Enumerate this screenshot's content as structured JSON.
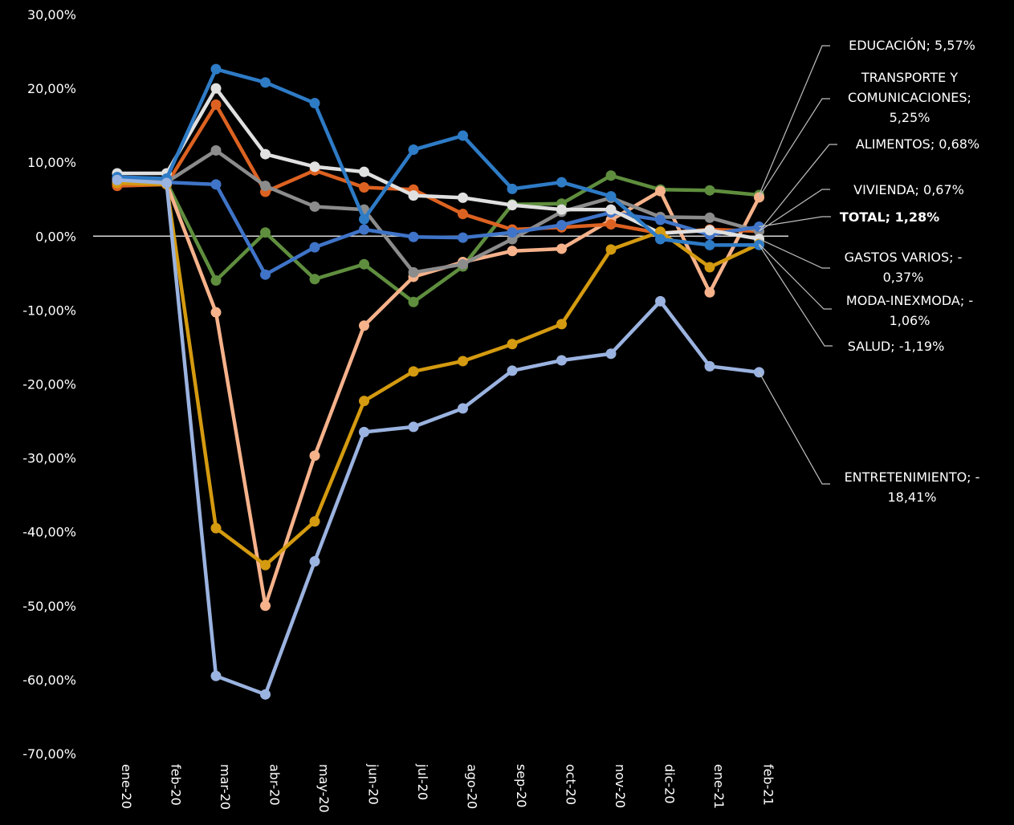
{
  "chart_data": {
    "type": "line",
    "title": "",
    "xlabel": "",
    "ylabel": "",
    "ylim": [
      -70,
      30
    ],
    "yticks": [
      "30,00%",
      "20,00%",
      "10,00%",
      "0,00%",
      "-10,00%",
      "-20,00%",
      "-30,00%",
      "-40,00%",
      "-50,00%",
      "-60,00%",
      "-70,00%"
    ],
    "grid": false,
    "categories": [
      "ene-20",
      "feb-20",
      "mar-20",
      "abr-20",
      "may-20",
      "jun-20",
      "jul-20",
      "ago-20",
      "sep-20",
      "oct-20",
      "nov-20",
      "dic-20",
      "ene-21",
      "feb-21"
    ],
    "series": [
      {
        "name": "EDUCACIÓN",
        "label_lines": [
          "EDUCACIÓN; 5,57%"
        ],
        "color": "#5F8E3E",
        "values": [
          7.5,
          7.3,
          -6.0,
          0.5,
          -5.8,
          -3.8,
          -8.9,
          -4.1,
          4.3,
          4.4,
          8.2,
          6.3,
          6.2,
          5.57
        ]
      },
      {
        "name": "TRANSPORTE Y COMUNICACIONES",
        "label_lines": [
          "TRANSPORTE Y",
          "COMUNICACIONES;",
          "5,25%"
        ],
        "color": "#F6B28B",
        "values": [
          7.1,
          7.1,
          -10.3,
          -50.0,
          -29.7,
          -12.1,
          -5.5,
          -3.5,
          -2.0,
          -1.7,
          2.2,
          6.1,
          -7.6,
          5.25
        ]
      },
      {
        "name": "ALIMENTOS",
        "label_lines": [
          "ALIMENTOS; 0,68%"
        ],
        "color": "#DD6221",
        "values": [
          6.8,
          7.0,
          17.8,
          6.0,
          8.9,
          6.6,
          6.3,
          3.0,
          0.9,
          1.2,
          1.6,
          0.4,
          0.9,
          0.68
        ]
      },
      {
        "name": "VIVIENDA",
        "label_lines": [
          "VIVIENDA; 0,67%"
        ],
        "color": "#8C8C8C",
        "values": [
          7.8,
          7.3,
          11.6,
          6.8,
          4.0,
          3.6,
          -4.9,
          -3.8,
          -0.4,
          3.3,
          5.2,
          2.6,
          2.5,
          0.67
        ]
      },
      {
        "name": "TOTAL",
        "label_lines": [
          "TOTAL; 1,28%"
        ],
        "color": "#3F74C8",
        "bold": true,
        "values": [
          7.3,
          7.3,
          7.0,
          -5.2,
          -1.5,
          0.9,
          -0.1,
          -0.2,
          0.5,
          1.5,
          3.2,
          2.2,
          0.2,
          1.28
        ]
      },
      {
        "name": "GASTOS VARIOS",
        "label_lines": [
          "GASTOS VARIOS; -",
          "0,37%"
        ],
        "color": "#E0E0E0",
        "values": [
          8.5,
          8.5,
          20.0,
          11.1,
          9.4,
          8.7,
          5.5,
          5.2,
          4.2,
          3.6,
          3.6,
          0.4,
          0.8,
          -0.37
        ]
      },
      {
        "name": "MODA-INEXMODA",
        "label_lines": [
          "MODA-INEXMODA; -",
          "1,06%"
        ],
        "color": "#D49A10",
        "values": [
          7.2,
          7.0,
          -39.5,
          -44.5,
          -38.6,
          -22.3,
          -18.3,
          -16.9,
          -14.6,
          -11.9,
          -1.8,
          0.6,
          -4.2,
          -1.06
        ]
      },
      {
        "name": "SALUD",
        "label_lines": [
          "SALUD; -1,19%"
        ],
        "color": "#2E7BC6",
        "values": [
          8.0,
          7.8,
          22.6,
          20.8,
          18.0,
          2.3,
          11.7,
          13.6,
          6.4,
          7.3,
          5.4,
          -0.4,
          -1.2,
          -1.19
        ]
      },
      {
        "name": "ENTRETENIMIENTO",
        "label_lines": [
          "ENTRETENIMIENTO; -",
          "18,41%"
        ],
        "color": "#9BB3E0",
        "values": [
          7.6,
          7.2,
          -59.5,
          -62.0,
          -44.0,
          -26.5,
          -25.8,
          -23.3,
          -18.2,
          -16.8,
          -15.9,
          -8.8,
          -17.6,
          -18.41
        ]
      }
    ]
  }
}
